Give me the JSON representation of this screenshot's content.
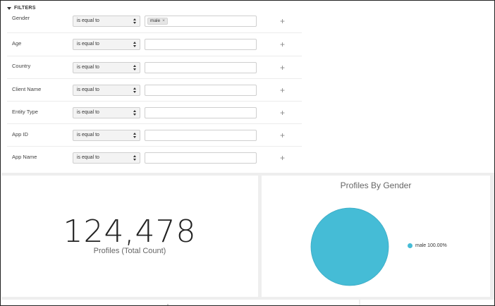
{
  "filters": {
    "title": "FILTERS",
    "rows": [
      {
        "label": "Gender",
        "operator": "is equal to",
        "tag": "male"
      },
      {
        "label": "Age",
        "operator": "is equal to"
      },
      {
        "label": "Country",
        "operator": "is equal to"
      },
      {
        "label": "Client Name",
        "operator": "is equal to"
      },
      {
        "label": "Entity Type",
        "operator": "is equal to"
      },
      {
        "label": "App ID",
        "operator": "is equal to"
      },
      {
        "label": "App Name",
        "operator": "is equal to"
      }
    ],
    "add_symbol": "+",
    "tag_remove_symbol": "×"
  },
  "kpi": {
    "value": "124,478",
    "caption": "Profiles (Total Count)"
  },
  "pie_chart": {
    "title": "Profiles By Gender",
    "accent_color": "#45bcd6",
    "legend": [
      {
        "label": "male 100.00%",
        "color": "#45bcd6"
      }
    ]
  },
  "chart_data": {
    "type": "pie",
    "title": "Profiles By Gender",
    "categories": [
      "male"
    ],
    "values": [
      100.0
    ],
    "legend": "right"
  }
}
